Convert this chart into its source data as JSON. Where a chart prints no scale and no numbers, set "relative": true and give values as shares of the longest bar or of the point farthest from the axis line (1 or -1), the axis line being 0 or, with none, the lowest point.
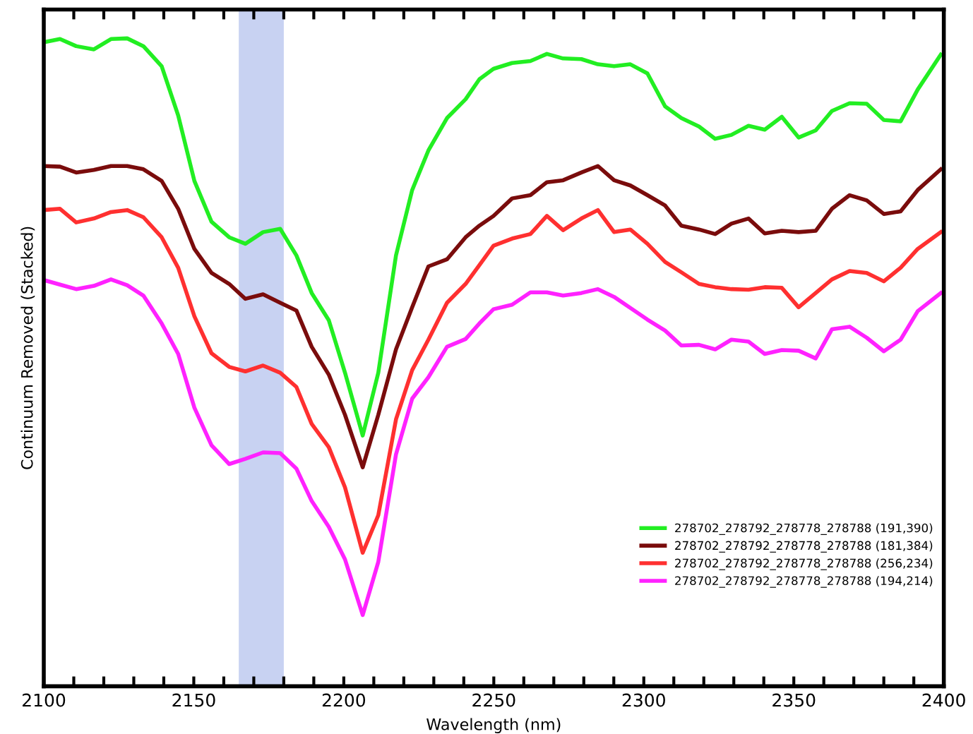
{
  "chart_data": {
    "type": "line",
    "relative": true,
    "xlabel": "Wavelength (nm)",
    "ylabel": "Continuum Removed (Stacked)",
    "x": [
      2100,
      2105.4,
      2110.8,
      2116.7,
      2122.4,
      2127.8,
      2133.2,
      2139.3,
      2144.8,
      2150.2,
      2155.9,
      2161.8,
      2167.2,
      2173.1,
      2178.8,
      2184.2,
      2189.3,
      2195,
      2200.4,
      2206.3,
      2211.5,
      2217.4,
      2222.8,
      2228.2,
      2234.4,
      2240.6,
      2245.2,
      2249.9,
      2256.1,
      2262.2,
      2267.7,
      2273.1,
      2279.2,
      2284.7,
      2290.1,
      2295.5,
      2301.2,
      2307.1,
      2312.5,
      2318.4,
      2323.8,
      2329.2,
      2334.9,
      2340.3,
      2346,
      2351.6,
      2357.3,
      2362.7,
      2368.6,
      2374.3,
      2380,
      2385.6,
      2391.3,
      2399
    ],
    "xlim": [
      2100,
      2400
    ],
    "xticks": [
      2100,
      {
        "value": 2110,
        "label": null
      },
      {
        "value": 2120,
        "label": null
      },
      {
        "value": 2130,
        "label": null
      },
      {
        "value": 2140,
        "label": null
      },
      2150,
      {
        "value": 2160,
        "label": null
      },
      {
        "value": 2170,
        "label": null
      },
      {
        "value": 2180,
        "label": null
      },
      {
        "value": 2190,
        "label": null
      },
      2200,
      {
        "value": 2210,
        "label": null
      },
      {
        "value": 2220,
        "label": null
      },
      {
        "value": 2230,
        "label": null
      },
      {
        "value": 2240,
        "label": null
      },
      2250,
      {
        "value": 2260,
        "label": null
      },
      {
        "value": 2270,
        "label": null
      },
      {
        "value": 2280,
        "label": null
      },
      {
        "value": 2290,
        "label": null
      },
      2300,
      {
        "value": 2310,
        "label": null
      },
      {
        "value": 2320,
        "label": null
      },
      {
        "value": 2330,
        "label": null
      },
      {
        "value": 2340,
        "label": null
      },
      2350,
      {
        "value": 2360,
        "label": null
      },
      {
        "value": 2370,
        "label": null
      },
      {
        "value": 2380,
        "label": null
      },
      {
        "value": 2390,
        "label": null
      },
      2400
    ],
    "series": [
      {
        "name": "278702_278792_278778_278788 (191,390)",
        "color": "#22ee22",
        "values": [
          0.994,
          0.999,
          0.988,
          0.983,
          0.999,
          1.0,
          0.988,
          0.957,
          0.881,
          0.78,
          0.717,
          0.693,
          0.683,
          0.701,
          0.706,
          0.665,
          0.607,
          0.565,
          0.484,
          0.387,
          0.484,
          0.665,
          0.766,
          0.827,
          0.877,
          0.906,
          0.937,
          0.953,
          0.962,
          0.965,
          0.976,
          0.969,
          0.968,
          0.96,
          0.957,
          0.96,
          0.946,
          0.895,
          0.877,
          0.864,
          0.845,
          0.851,
          0.865,
          0.859,
          0.879,
          0.847,
          0.858,
          0.888,
          0.9,
          0.899,
          0.874,
          0.872,
          0.921,
          0.975
        ]
      },
      {
        "name": "278702_278792_278778_278788 (181,384)",
        "color": "#7a0c0c",
        "values": [
          0.803,
          0.802,
          0.793,
          0.797,
          0.803,
          0.803,
          0.798,
          0.78,
          0.737,
          0.675,
          0.638,
          0.621,
          0.598,
          0.605,
          0.592,
          0.58,
          0.524,
          0.481,
          0.419,
          0.338,
          0.419,
          0.52,
          0.585,
          0.648,
          0.659,
          0.693,
          0.711,
          0.726,
          0.753,
          0.758,
          0.778,
          0.781,
          0.793,
          0.803,
          0.781,
          0.773,
          0.758,
          0.742,
          0.711,
          0.705,
          0.698,
          0.714,
          0.722,
          0.699,
          0.703,
          0.701,
          0.703,
          0.737,
          0.758,
          0.75,
          0.729,
          0.733,
          0.766,
          0.798
        ]
      },
      {
        "name": "278702_278792_278778_278788 (256,234)",
        "color": "#ff3030",
        "values": [
          0.735,
          0.737,
          0.716,
          0.722,
          0.732,
          0.735,
          0.724,
          0.693,
          0.646,
          0.571,
          0.514,
          0.493,
          0.486,
          0.495,
          0.484,
          0.462,
          0.405,
          0.369,
          0.307,
          0.206,
          0.264,
          0.412,
          0.488,
          0.535,
          0.592,
          0.621,
          0.65,
          0.68,
          0.691,
          0.698,
          0.726,
          0.704,
          0.722,
          0.735,
          0.701,
          0.705,
          0.683,
          0.655,
          0.639,
          0.621,
          0.616,
          0.613,
          0.612,
          0.616,
          0.615,
          0.585,
          0.607,
          0.628,
          0.641,
          0.638,
          0.625,
          0.646,
          0.675,
          0.701
        ]
      },
      {
        "name": "278702_278792_278778_278788 (194,214)",
        "color": "#ff22ff",
        "values": [
          0.627,
          0.62,
          0.613,
          0.618,
          0.628,
          0.619,
          0.603,
          0.56,
          0.513,
          0.43,
          0.372,
          0.343,
          0.351,
          0.361,
          0.36,
          0.336,
          0.286,
          0.246,
          0.196,
          0.11,
          0.192,
          0.358,
          0.444,
          0.477,
          0.524,
          0.536,
          0.56,
          0.582,
          0.589,
          0.608,
          0.608,
          0.603,
          0.607,
          0.613,
          0.601,
          0.584,
          0.566,
          0.549,
          0.526,
          0.527,
          0.52,
          0.535,
          0.532,
          0.513,
          0.519,
          0.518,
          0.506,
          0.551,
          0.555,
          0.538,
          0.517,
          0.535,
          0.579,
          0.607
        ]
      }
    ],
    "bands": [
      {
        "axis": "x",
        "from": 2165,
        "to": 2180,
        "color": "#c8d2f2"
      }
    ],
    "legend": "bottom right",
    "grid": false,
    "line_style": "solid",
    "marker": "none"
  }
}
